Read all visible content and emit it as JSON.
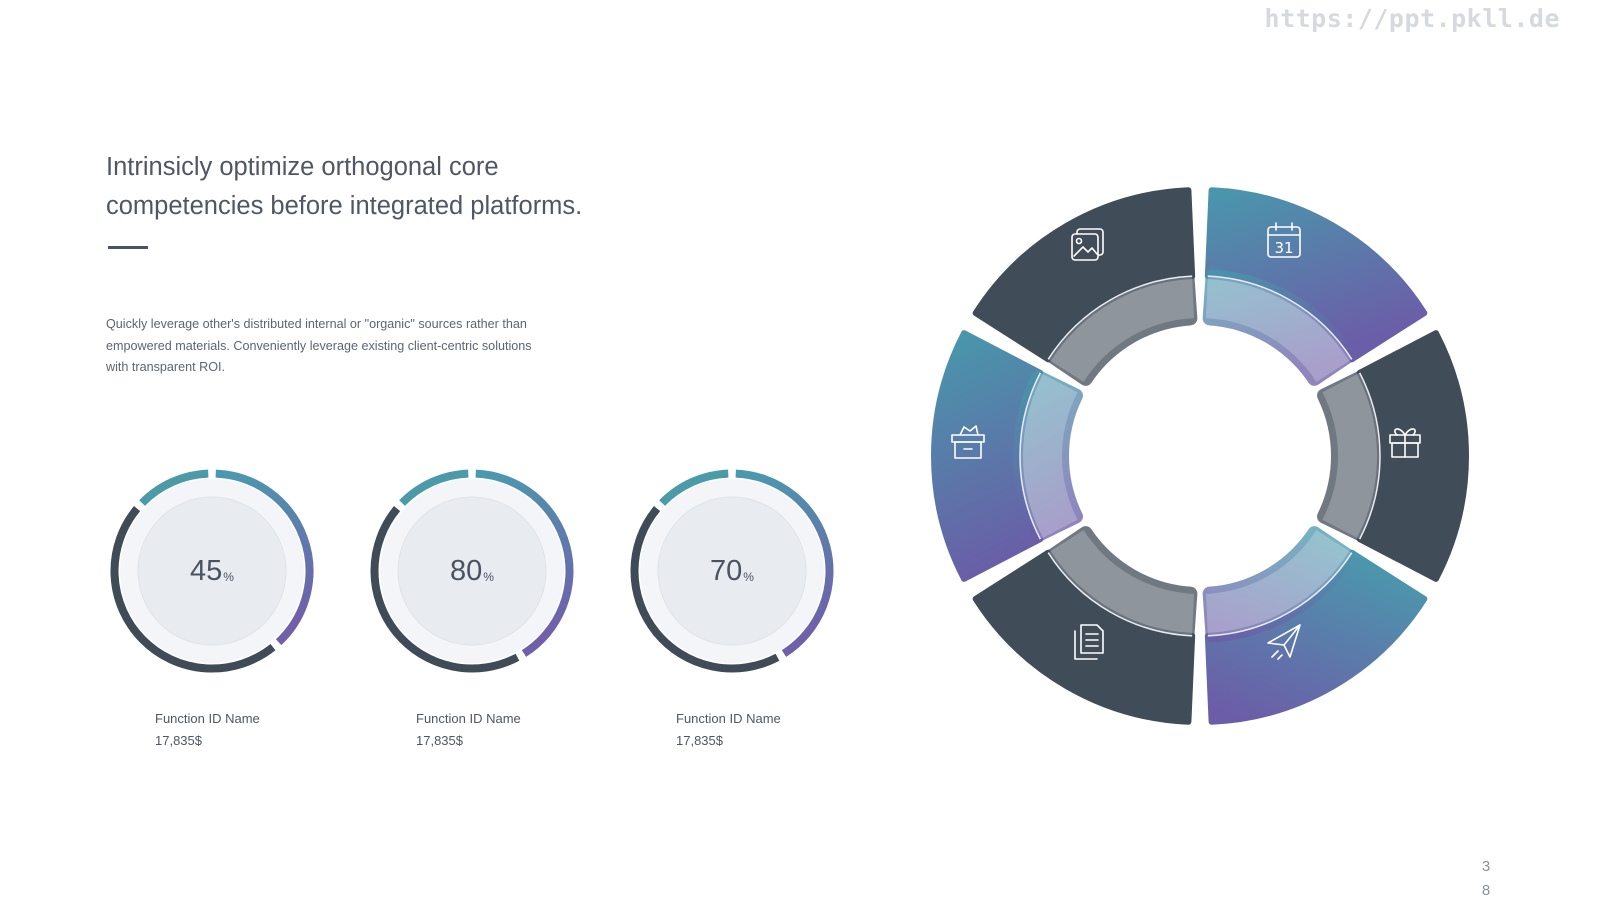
{
  "watermark": "https://ppt.pkll.de",
  "headline": {
    "line1": "Intrinsicly optimize orthogonal core",
    "line2": "competencies before integrated platforms."
  },
  "body": {
    "line1": "Quickly leverage other's distributed internal or \"organic\" sources rather than",
    "line2": "empowered materials. Conveniently leverage existing client-centric solutions",
    "line3": "with transparent ROI."
  },
  "gauges": [
    {
      "value": "45",
      "unit": "%",
      "percent": 45,
      "name": "Function ID Name",
      "amount": "17,835$"
    },
    {
      "value": "80",
      "unit": "%",
      "percent": 80,
      "name": "Function ID Name",
      "amount": "17,835$"
    },
    {
      "value": "70",
      "unit": "%",
      "percent": 70,
      "name": "Function ID Name",
      "amount": "17,835$"
    }
  ],
  "wheel": {
    "segments": [
      {
        "icon": "images-icon",
        "style": "dark"
      },
      {
        "icon": "calendar-icon",
        "label": "31",
        "style": "gradient"
      },
      {
        "icon": "gift-icon",
        "style": "dark"
      },
      {
        "icon": "paper-plane-icon",
        "style": "gradient"
      },
      {
        "icon": "document-icon",
        "style": "dark"
      },
      {
        "icon": "box-icon",
        "style": "gradient"
      }
    ]
  },
  "colors": {
    "dark": "#404b58",
    "teal": "#4a9aa8",
    "blue": "#4d87b0",
    "purple": "#6d5fa8",
    "track_light": "#e8ebf0"
  },
  "page_number": {
    "digit1": "3",
    "digit2": "8"
  }
}
